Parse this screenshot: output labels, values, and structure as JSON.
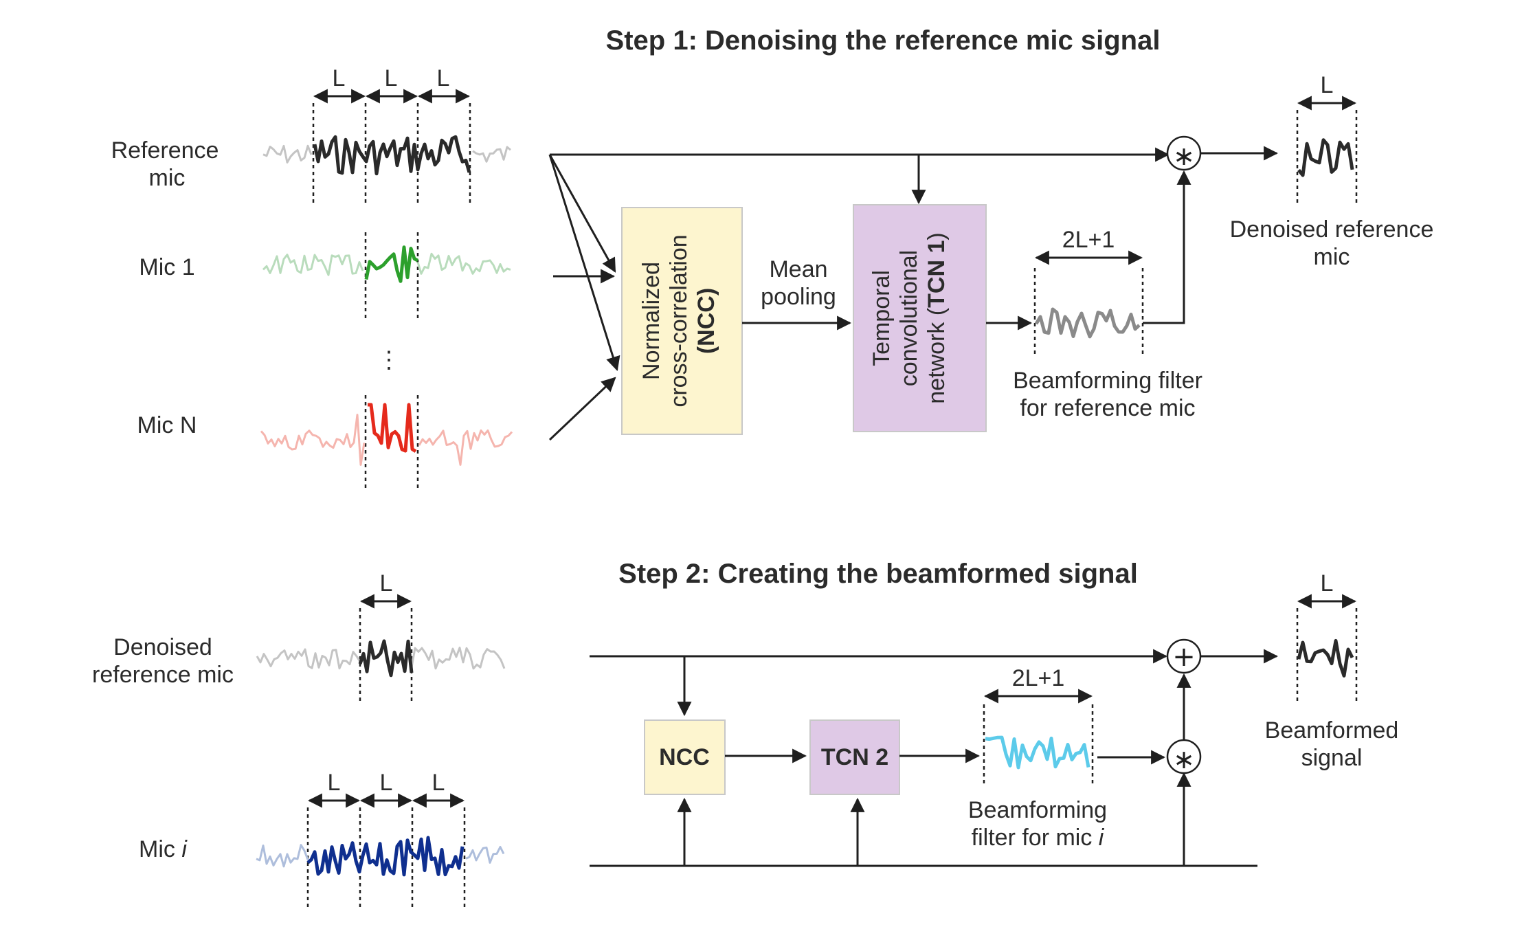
{
  "step1": {
    "title": "Step 1: Denoising the reference mic signal",
    "inputs": {
      "reference_mic": [
        "Reference",
        "mic"
      ],
      "mic1": "Mic 1",
      "micN": "Mic N",
      "ellipsis": "⋮"
    },
    "segment_label": "L",
    "ncc_block": [
      "Normalized",
      "cross-correlation",
      "(NCC)"
    ],
    "pooling_label": [
      "Mean",
      "pooling"
    ],
    "tcn_block": [
      "Temporal",
      "convolutional",
      "network (",
      "TCN 1",
      ")"
    ],
    "filter_width_label": "2L+1",
    "filter_label": [
      "Beamforming filter",
      "for reference mic"
    ],
    "output_label": [
      "Denoised reference",
      "mic"
    ]
  },
  "step2": {
    "title": "Step 2: Creating the beamformed signal",
    "inputs": {
      "denoised_ref": [
        "Denoised",
        "reference mic"
      ],
      "mic_i_prefix": "Mic ",
      "mic_i_var": "i"
    },
    "segment_label": "L",
    "ncc_block": "NCC",
    "tcn_block": "TCN 2",
    "filter_width_label": "2L+1",
    "filter_label_line1": "Beamforming",
    "filter_label_line2_prefix": "filter for mic ",
    "filter_label_var": "i",
    "output_label": [
      "Beamformed",
      "signal"
    ]
  },
  "operators": {
    "convolution": "∗",
    "sum": "+"
  },
  "colors": {
    "text": "#2b2b2b",
    "ncc_fill": "#fdf5cf",
    "tcn_fill": "#dfc9e6",
    "block_border": "#c8c8c8",
    "reference_light": "#c4c4c4",
    "reference_dark": "#2a2a2a",
    "mic1_light": "#b9dcbc",
    "mic1_dark": "#2ca02c",
    "micN_light": "#f5b5ae",
    "micN_dark": "#e52a1c",
    "filter1": "#8a8a8a",
    "filter2": "#5ccbea",
    "mic_i_light": "#aebedc",
    "mic_i_dark": "#0f2f8f"
  }
}
